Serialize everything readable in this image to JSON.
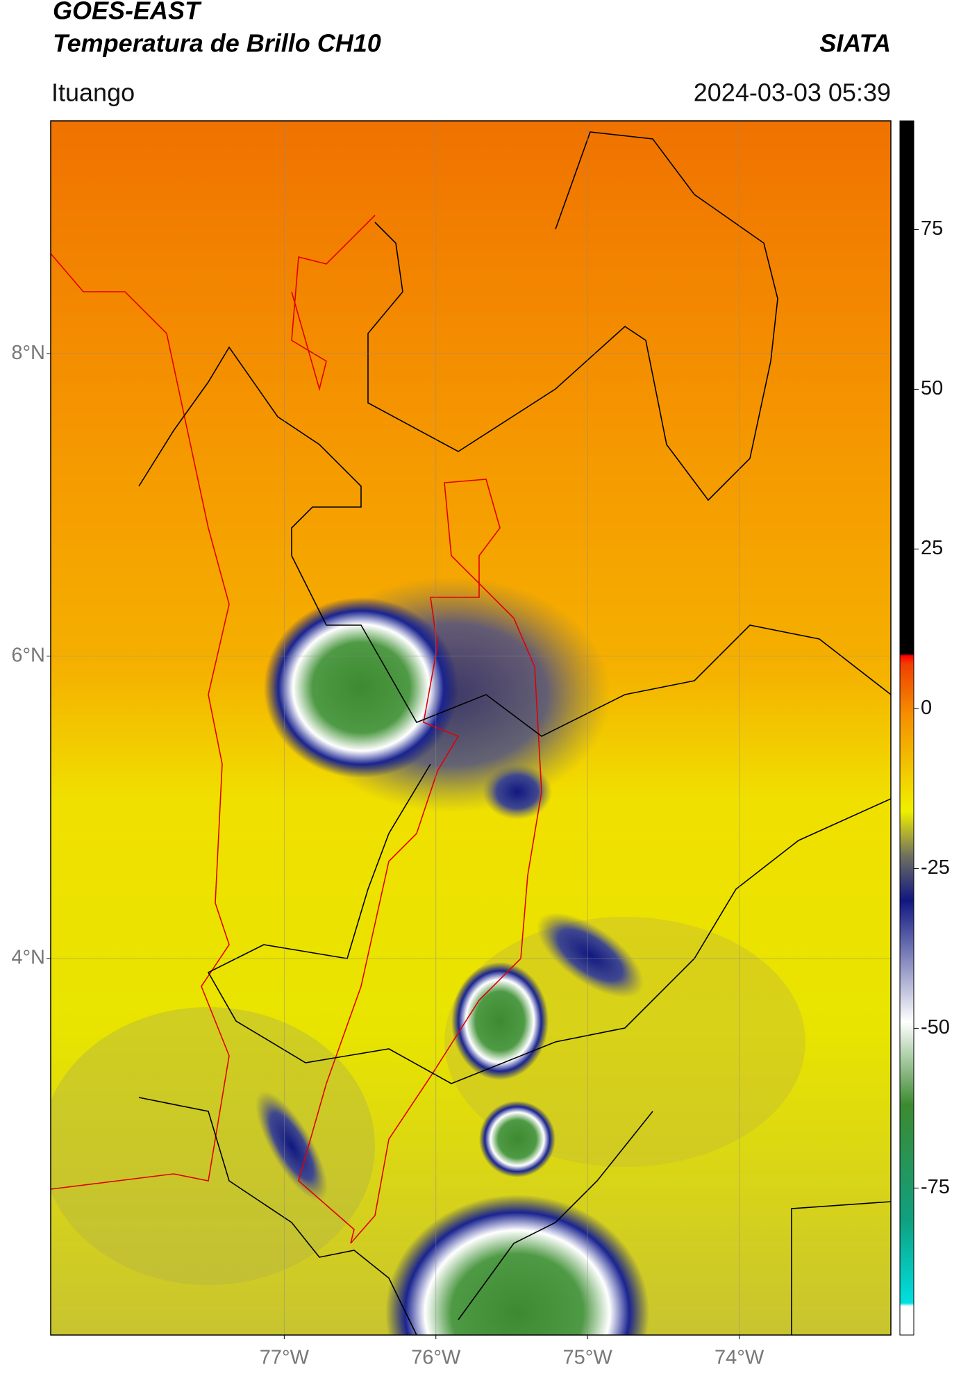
{
  "header": {
    "title_line1": "GOES-EAST",
    "title_line2": "Temperatura de Brillo CH10",
    "source": "SIATA",
    "location": "Ituango",
    "datetime": "2024-03-03 05:39"
  },
  "map": {
    "xlim": [
      -78.54,
      -73.0
    ],
    "ylim": [
      1.51,
      9.54
    ],
    "xticks": [
      {
        "value": -77,
        "label": "77°W"
      },
      {
        "value": -76,
        "label": "76°W"
      },
      {
        "value": -75,
        "label": "75°W"
      },
      {
        "value": -74,
        "label": "74°W"
      }
    ],
    "yticks": [
      {
        "value": 4,
        "label": "4°N"
      },
      {
        "value": 6,
        "label": "6°N"
      },
      {
        "value": 8,
        "label": "8°N"
      }
    ],
    "grid": true
  },
  "colorbar": {
    "lim": [
      -98,
      92
    ],
    "ticks": [
      -75,
      -50,
      -25,
      0,
      25,
      50,
      75
    ],
    "stops": [
      {
        "value": -98,
        "color": "#ffffff"
      },
      {
        "value": -93.5,
        "color": "#ffffff"
      },
      {
        "value": -93,
        "color": "#00e0e0"
      },
      {
        "value": -80,
        "color": "#10a080"
      },
      {
        "value": -62,
        "color": "#3c8a30"
      },
      {
        "value": -49,
        "color": "#ffffff"
      },
      {
        "value": -30,
        "color": "#101880"
      },
      {
        "value": -23,
        "color": "#707060"
      },
      {
        "value": -16,
        "color": "#f0f000"
      },
      {
        "value": -1,
        "color": "#f59000"
      },
      {
        "value": 7,
        "color": "#f04000"
      },
      {
        "value": 8.3,
        "color": "#ff0000"
      },
      {
        "value": 8.6,
        "color": "#000000"
      },
      {
        "value": 92,
        "color": "#000000"
      }
    ]
  }
}
